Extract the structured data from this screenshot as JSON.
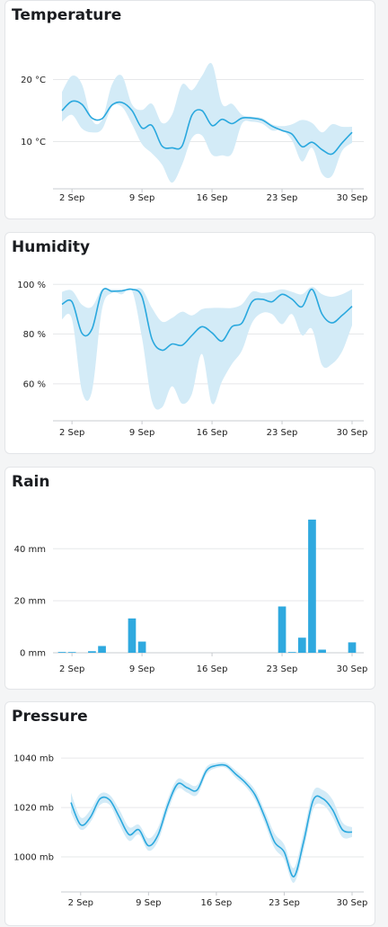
{
  "colors": {
    "line": "#2aa8de",
    "band": "#d3ebf7",
    "bar": "#2fa9df",
    "grid": "#e6e8ea",
    "axis": "#c9ccd0"
  },
  "cards": [
    {
      "title": "Temperature"
    },
    {
      "title": "Humidity"
    },
    {
      "title": "Rain"
    },
    {
      "title": "Pressure"
    }
  ],
  "chart_data": [
    {
      "type": "line",
      "title": "Temperature",
      "x_ticks": [
        "2 Sep",
        "9 Sep",
        "16 Sep",
        "23 Sep",
        "30 Sep"
      ],
      "y_ticks": [
        {
          "value": 10,
          "label": "10 °C"
        },
        {
          "value": 20,
          "label": "20 °C"
        }
      ],
      "ylim": [
        2.4,
        26.3
      ],
      "x": [
        1,
        2,
        3,
        4,
        5,
        6,
        7,
        8,
        9,
        10,
        11,
        12,
        13,
        14,
        15,
        16,
        17,
        18,
        19,
        20,
        21,
        22,
        23,
        24,
        25,
        26,
        27,
        28,
        29,
        30
      ],
      "series": [
        {
          "role": "mean",
          "values": [
            15.0,
            16.5,
            16.0,
            13.8,
            13.7,
            15.9,
            16.3,
            15.0,
            12.2,
            12.6,
            9.3,
            9.0,
            9.3,
            14.3,
            15.0,
            12.6,
            13.6,
            12.9,
            13.8,
            13.8,
            13.5,
            12.5,
            11.8,
            11.2,
            9.2,
            9.9,
            8.7,
            8.0,
            9.8,
            11.5
          ]
        },
        {
          "role": "max",
          "values": [
            18.0,
            20.6,
            19.2,
            13.5,
            13.5,
            19.2,
            20.6,
            16.0,
            15.1,
            16.1,
            13.0,
            14.3,
            19.2,
            18.3,
            20.6,
            22.5,
            16.1,
            16.1,
            14.3,
            14.0,
            13.8,
            12.8,
            12.5,
            12.8,
            13.5,
            13.0,
            11.5,
            12.8,
            12.4,
            12.4
          ]
        },
        {
          "role": "min",
          "values": [
            13.2,
            14.3,
            12.1,
            11.5,
            12.0,
            15.6,
            15.6,
            12.8,
            9.6,
            8.1,
            6.3,
            3.4,
            6.3,
            10.6,
            11.0,
            7.9,
            7.8,
            8.1,
            12.9,
            13.2,
            12.9,
            11.8,
            11.8,
            10.2,
            6.8,
            9.0,
            4.8,
            4.5,
            8.5,
            9.8
          ]
        }
      ]
    },
    {
      "type": "line",
      "title": "Humidity",
      "x_ticks": [
        "2 Sep",
        "9 Sep",
        "16 Sep",
        "23 Sep",
        "30 Sep"
      ],
      "y_ticks": [
        {
          "value": 60,
          "label": "60 %"
        },
        {
          "value": 80,
          "label": "80 %"
        },
        {
          "value": 100,
          "label": "100 %"
        }
      ],
      "ylim": [
        45.1,
        104.8
      ],
      "x": [
        1,
        2,
        3,
        4,
        5,
        6,
        7,
        8,
        9,
        10,
        11,
        12,
        13,
        14,
        15,
        16,
        17,
        18,
        19,
        20,
        21,
        22,
        23,
        24,
        25,
        26,
        27,
        28,
        29,
        30
      ],
      "series": [
        {
          "role": "mean",
          "values": [
            92.0,
            93.0,
            80.3,
            82.0,
            97.2,
            97.2,
            97.4,
            98.0,
            95.0,
            78.0,
            73.5,
            76.0,
            75.5,
            79.5,
            83.0,
            80.5,
            77.2,
            83.0,
            84.5,
            93.0,
            94.0,
            93.0,
            96.0,
            94.0,
            91.0,
            98.0,
            88.0,
            84.5,
            87.5,
            91.2
          ]
        },
        {
          "role": "max",
          "values": [
            97.0,
            97.5,
            91.8,
            91.0,
            98.0,
            98.0,
            98.0,
            98.0,
            98.0,
            90.5,
            85.0,
            86.5,
            89.0,
            87.5,
            90.0,
            90.5,
            90.5,
            90.5,
            92.0,
            97.0,
            96.5,
            97.0,
            98.0,
            97.0,
            96.0,
            99.0,
            96.0,
            95.0,
            96.0,
            98.0
          ]
        },
        {
          "role": "min",
          "values": [
            86.0,
            86.0,
            57.0,
            57.0,
            90.0,
            96.5,
            96.0,
            97.5,
            78.5,
            53.0,
            50.5,
            59.0,
            52.0,
            56.0,
            72.0,
            52.0,
            61.0,
            68.0,
            73.5,
            84.5,
            88.5,
            88.0,
            84.0,
            88.0,
            79.5,
            82.0,
            67.5,
            68.0,
            73.0,
            83.5
          ]
        }
      ]
    },
    {
      "type": "bar",
      "title": "Rain",
      "x_ticks": [
        "2 Sep",
        "9 Sep",
        "16 Sep",
        "23 Sep",
        "30 Sep"
      ],
      "y_ticks": [
        {
          "value": 0,
          "label": "0 mm"
        },
        {
          "value": 20,
          "label": "20 mm"
        },
        {
          "value": 40,
          "label": "40 mm"
        }
      ],
      "ylim": [
        0,
        56
      ],
      "x": [
        1,
        2,
        3,
        4,
        5,
        6,
        7,
        8,
        9,
        10,
        11,
        12,
        13,
        14,
        15,
        16,
        17,
        18,
        19,
        20,
        21,
        22,
        23,
        24,
        25,
        26,
        27,
        28,
        29,
        30
      ],
      "values": [
        0.3,
        0.1,
        0,
        0.6,
        2.6,
        0,
        0,
        13.2,
        4.3,
        0,
        0,
        0,
        0,
        0,
        0,
        0,
        0,
        0,
        0,
        0,
        0,
        0,
        17.8,
        0.2,
        5.8,
        51.2,
        1.2,
        0,
        0,
        4.0
      ]
    },
    {
      "type": "line",
      "title": "Pressure",
      "x_ticks": [
        "2 Sep",
        "9 Sep",
        "16 Sep",
        "23 Sep",
        "30 Sep"
      ],
      "y_ticks": [
        {
          "value": 1000,
          "label": "1000 mb"
        },
        {
          "value": 1020,
          "label": "1020 mb"
        },
        {
          "value": 1040,
          "label": "1040 mb"
        }
      ],
      "ylim": [
        985.8,
        1046.6
      ],
      "x": [
        1,
        2,
        3,
        4,
        5,
        6,
        7,
        8,
        9,
        10,
        11,
        12,
        13,
        14,
        15,
        16,
        17,
        18,
        19,
        20,
        21,
        22,
        23,
        24,
        25,
        26,
        27,
        28,
        29,
        30
      ],
      "series": [
        {
          "role": "mean",
          "values": [
            1022.0,
            1013.0,
            1016.0,
            1023.5,
            1023.0,
            1016.0,
            1009.0,
            1011.0,
            1004.5,
            1009.0,
            1021.0,
            1029.5,
            1028.0,
            1027.0,
            1035.0,
            1037.0,
            1037.0,
            1033.5,
            1030.0,
            1025.0,
            1016.0,
            1006.0,
            1002.0,
            992.0,
            1006.0,
            1023.0,
            1023.5,
            1019.0,
            1011.0,
            1010.0
          ]
        },
        {
          "role": "max",
          "values": [
            1026.0,
            1016.0,
            1019.0,
            1025.5,
            1025.0,
            1019.0,
            1012.0,
            1013.0,
            1007.5,
            1012.0,
            1023.5,
            1031.5,
            1030.0,
            1029.0,
            1036.5,
            1038.0,
            1038.0,
            1035.0,
            1031.5,
            1027.0,
            1018.5,
            1009.5,
            1005.0,
            995.5,
            1010.0,
            1026.5,
            1027.0,
            1023.0,
            1014.0,
            1012.0
          ]
        },
        {
          "role": "min",
          "values": [
            1018.0,
            1011.0,
            1014.0,
            1021.0,
            1021.0,
            1013.0,
            1006.5,
            1009.0,
            1002.5,
            1006.5,
            1018.5,
            1027.5,
            1026.0,
            1025.0,
            1033.5,
            1036.0,
            1036.0,
            1032.0,
            1028.5,
            1023.0,
            1013.5,
            1003.5,
            999.0,
            989.5,
            1002.5,
            1019.5,
            1021.0,
            1016.0,
            1008.0,
            1008.0
          ]
        }
      ]
    }
  ]
}
